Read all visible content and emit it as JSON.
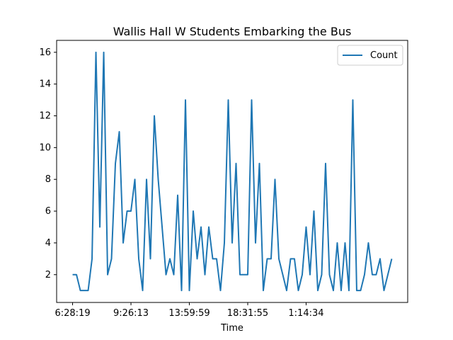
{
  "chart_data": {
    "type": "line",
    "title": "Wallis Hall W Students Embarking the Bus",
    "xlabel": "Time",
    "ylabel": "",
    "x_tick_labels": [
      "6:28:19",
      "9:26:13",
      "13:59:59",
      "18:31:55",
      "1:14:34"
    ],
    "x_tick_indices": [
      0,
      15,
      30,
      45,
      60
    ],
    "y_ticks": [
      2,
      4,
      6,
      8,
      10,
      12,
      14,
      16
    ],
    "ylim": [
      0.25,
      16.75
    ],
    "xlim": [
      -2.1,
      44.1
    ],
    "grid": false,
    "legend_position": "top-right",
    "series": [
      {
        "name": "Count",
        "color": "#1f77b4",
        "values": [
          2,
          2,
          1,
          1,
          1,
          3,
          16,
          5,
          16,
          2,
          3,
          9,
          11,
          4,
          6,
          6,
          8,
          3,
          1,
          8,
          3,
          12,
          8,
          5,
          2,
          3,
          2,
          7,
          1,
          13,
          1,
          6,
          3,
          5,
          2,
          5,
          3,
          3,
          1,
          4,
          13,
          4,
          9,
          2,
          2,
          2,
          13,
          4,
          9,
          1,
          3,
          3,
          8,
          3,
          2,
          1,
          3,
          3,
          1,
          2,
          5,
          2,
          6,
          1,
          2,
          9,
          2,
          1,
          4,
          1,
          4,
          1,
          13,
          1,
          1,
          2,
          4,
          2,
          2,
          3,
          1,
          2,
          3
        ]
      }
    ]
  }
}
